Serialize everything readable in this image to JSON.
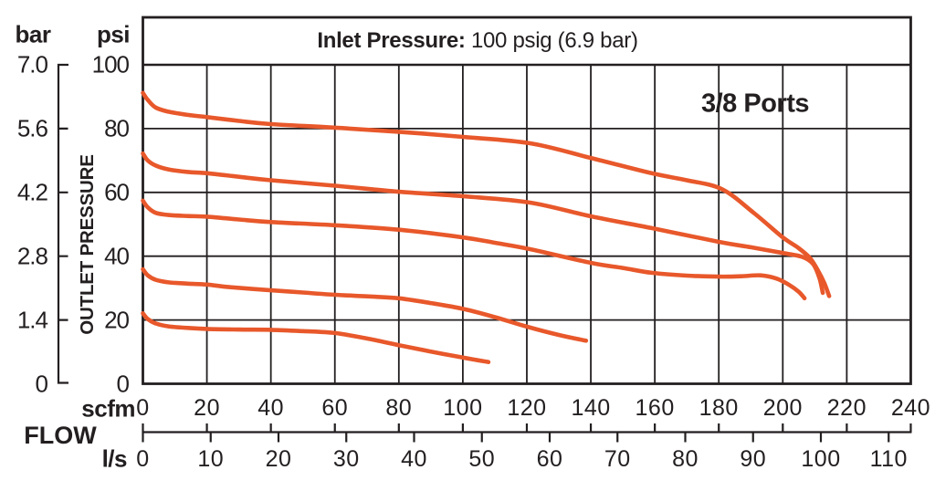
{
  "header": {
    "title_bold": "Inlet Pressure:",
    "title_value": " 100 psig (6.9 bar)",
    "ports_label": "3/8 Ports"
  },
  "y_axis": {
    "left_unit": "bar",
    "right_unit": "psi",
    "axis_title": "OUTLET PRESSURE",
    "bar_ticks": [
      "7.0",
      "5.6",
      "4.2",
      "2.8",
      "1.4",
      "0"
    ],
    "psi_ticks": [
      "100",
      "80",
      "60",
      "40",
      "20",
      "0"
    ]
  },
  "x_axis": {
    "title": "FLOW",
    "scfm_unit": "scfm",
    "ls_unit": "l/s",
    "scfm_ticks": [
      "0",
      "20",
      "40",
      "60",
      "80",
      "100",
      "120",
      "140",
      "160",
      "180",
      "200",
      "220",
      "240"
    ],
    "ls_ticks": [
      "0",
      "10",
      "20",
      "30",
      "40",
      "50",
      "60",
      "70",
      "80",
      "90",
      "100",
      "110"
    ]
  },
  "chart_data": {
    "type": "line",
    "title": "Inlet Pressure: 100 psig (6.9 bar)",
    "annotation": "3/8 Ports",
    "xlabel": "FLOW",
    "ylabel": "OUTLET PRESSURE",
    "x_units": [
      "scfm",
      "l/s"
    ],
    "y_units": [
      "psi",
      "bar"
    ],
    "xlim_scfm": [
      0,
      240
    ],
    "xlim_ls": [
      0,
      113.3
    ],
    "ylim_psi": [
      0,
      100
    ],
    "ylim_bar": [
      0,
      7.0
    ],
    "grid": true,
    "grid_step_scfm": 20,
    "grid_step_psi": 20,
    "line_color": "#e8582b",
    "grid_color": "#231f20",
    "series": [
      {
        "name": "curve-1",
        "x_unit": "scfm",
        "y_unit": "psi",
        "points": [
          [
            0,
            91.2
          ],
          [
            1.5,
            89
          ],
          [
            4,
            86.6
          ],
          [
            8,
            85.3
          ],
          [
            14,
            84.3
          ],
          [
            20,
            83.6
          ],
          [
            30,
            82.4
          ],
          [
            40,
            81.4
          ],
          [
            60,
            80.3
          ],
          [
            80,
            79
          ],
          [
            100,
            77.4
          ],
          [
            121,
            75.4
          ],
          [
            140,
            70.8
          ],
          [
            159,
            66
          ],
          [
            170,
            63.8
          ],
          [
            181,
            61
          ],
          [
            191,
            53.5
          ],
          [
            200,
            45.9
          ],
          [
            205,
            42.5
          ],
          [
            208.6,
            39.3
          ],
          [
            211,
            35.5
          ],
          [
            213,
            31.5
          ],
          [
            214.5,
            27.5
          ]
        ]
      },
      {
        "name": "curve-2",
        "x_unit": "scfm",
        "y_unit": "psi",
        "points": [
          [
            0,
            72.2
          ],
          [
            1.5,
            70
          ],
          [
            4,
            68.4
          ],
          [
            8,
            67.2
          ],
          [
            14,
            66.4
          ],
          [
            20,
            66
          ],
          [
            30,
            64.9
          ],
          [
            40,
            63.8
          ],
          [
            60,
            62.1
          ],
          [
            80,
            60.2
          ],
          [
            100,
            58.8
          ],
          [
            121,
            56.8
          ],
          [
            140,
            52.5
          ],
          [
            159,
            48.8
          ],
          [
            180,
            44.5
          ],
          [
            190,
            42.8
          ],
          [
            200,
            41
          ],
          [
            206,
            39.8
          ],
          [
            209.5,
            37.5
          ],
          [
            211.5,
            33
          ],
          [
            212.5,
            28.5
          ]
        ]
      },
      {
        "name": "curve-3",
        "x_unit": "scfm",
        "y_unit": "psi",
        "points": [
          [
            0,
            57.4
          ],
          [
            1.5,
            55.3
          ],
          [
            4,
            53.6
          ],
          [
            8,
            52.9
          ],
          [
            14,
            52.6
          ],
          [
            20,
            52.4
          ],
          [
            30,
            51.5
          ],
          [
            40,
            50.7
          ],
          [
            60,
            49.7
          ],
          [
            80,
            48.3
          ],
          [
            100,
            45.9
          ],
          [
            110,
            44.2
          ],
          [
            121,
            42.2
          ],
          [
            140,
            37.9
          ],
          [
            150,
            36.3
          ],
          [
            159,
            34.8
          ],
          [
            170,
            33.9
          ],
          [
            180,
            33.6
          ],
          [
            187,
            33.7
          ],
          [
            193,
            34
          ],
          [
            198,
            33
          ],
          [
            202,
            31
          ],
          [
            205,
            28.8
          ],
          [
            206.8,
            26.8
          ]
        ]
      },
      {
        "name": "curve-4",
        "x_unit": "scfm",
        "y_unit": "psi",
        "points": [
          [
            0,
            35.9
          ],
          [
            1.5,
            34
          ],
          [
            4,
            32.6
          ],
          [
            8,
            31.8
          ],
          [
            14,
            31.4
          ],
          [
            20,
            31.1
          ],
          [
            27,
            30.3
          ],
          [
            40,
            29.3
          ],
          [
            50,
            28.6
          ],
          [
            60,
            27.9
          ],
          [
            70,
            27.4
          ],
          [
            80,
            26.8
          ],
          [
            90,
            25.3
          ],
          [
            100,
            23.5
          ],
          [
            110,
            20.9
          ],
          [
            120,
            17.9
          ],
          [
            130,
            15.3
          ],
          [
            138.5,
            13.5
          ]
        ]
      },
      {
        "name": "curve-5",
        "x_unit": "scfm",
        "y_unit": "psi",
        "points": [
          [
            0,
            22.1
          ],
          [
            1.5,
            20.3
          ],
          [
            4,
            18.9
          ],
          [
            8,
            18
          ],
          [
            14,
            17.5
          ],
          [
            20,
            17.2
          ],
          [
            30,
            17
          ],
          [
            40,
            16.9
          ],
          [
            50,
            16.5
          ],
          [
            60,
            15.9
          ],
          [
            70,
            14.2
          ],
          [
            80,
            12.1
          ],
          [
            90,
            10.1
          ],
          [
            100,
            8.2
          ],
          [
            108,
            6.8
          ]
        ]
      }
    ]
  }
}
